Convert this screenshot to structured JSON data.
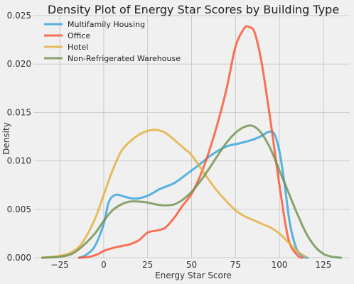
{
  "chart_data": {
    "type": "line",
    "title": "Density Plot of Energy Star Scores by Building Type",
    "xlabel": "Energy Star Score",
    "ylabel": "Density",
    "xlim": [
      -40,
      140
    ],
    "ylim": [
      0,
      0.025
    ],
    "xticks": [
      -25,
      0,
      25,
      50,
      75,
      100,
      125
    ],
    "yticks": [
      "0.000",
      "0.005",
      "0.010",
      "0.015",
      "0.020",
      "0.025"
    ],
    "grid": true,
    "legend_position": "top-left",
    "series": [
      {
        "name": "Multifamily Housing",
        "color": "#30a2da",
        "x": [
          -14,
          -10,
          -5,
          0,
          3,
          7,
          12,
          18,
          25,
          32,
          40,
          47,
          55,
          62,
          70,
          77,
          85,
          90,
          94,
          97,
          100,
          103,
          106,
          110,
          114,
          116
        ],
        "y": [
          0,
          0.0003,
          0.0012,
          0.0035,
          0.0058,
          0.0065,
          0.0063,
          0.0061,
          0.0064,
          0.0071,
          0.0077,
          0.0086,
          0.0097,
          0.0107,
          0.0115,
          0.0118,
          0.0122,
          0.0126,
          0.013,
          0.0128,
          0.011,
          0.0075,
          0.0035,
          0.0008,
          0.0001,
          0
        ]
      },
      {
        "name": "Office",
        "color": "#fc4f30",
        "x": [
          -14,
          -8,
          -3,
          0,
          5,
          10,
          15,
          20,
          25,
          30,
          35,
          40,
          45,
          50,
          55,
          60,
          65,
          70,
          75,
          80,
          83,
          86,
          90,
          95,
          100,
          105,
          110,
          113
        ],
        "y": [
          0,
          0.0001,
          0.0004,
          0.0007,
          0.001,
          0.0012,
          0.0014,
          0.0018,
          0.0026,
          0.0028,
          0.0031,
          0.0041,
          0.0054,
          0.0066,
          0.0085,
          0.011,
          0.014,
          0.0175,
          0.0218,
          0.0237,
          0.0238,
          0.0232,
          0.02,
          0.014,
          0.0075,
          0.002,
          0.0003,
          0
        ]
      },
      {
        "name": "Hotel",
        "color": "#e5ae38",
        "x": [
          -35,
          -25,
          -18,
          -12,
          -5,
          0,
          5,
          10,
          15,
          20,
          25,
          30,
          35,
          40,
          45,
          50,
          55,
          60,
          65,
          70,
          75,
          80,
          85,
          90,
          95,
          100,
          105,
          110,
          115
        ],
        "y": [
          0,
          0.0002,
          0.0006,
          0.0016,
          0.004,
          0.0065,
          0.009,
          0.011,
          0.012,
          0.0127,
          0.0131,
          0.0132,
          0.0129,
          0.0122,
          0.0114,
          0.0106,
          0.0093,
          0.008,
          0.0068,
          0.0058,
          0.0049,
          0.0043,
          0.0039,
          0.0035,
          0.0031,
          0.0025,
          0.0016,
          0.0007,
          0.0001
        ]
      },
      {
        "name": "Non-Refrigerated Warehouse",
        "color": "#6d904f",
        "x": [
          -35,
          -25,
          -18,
          -12,
          -5,
          0,
          5,
          10,
          15,
          20,
          25,
          30,
          35,
          40,
          45,
          50,
          55,
          60,
          65,
          70,
          75,
          80,
          85,
          90,
          95,
          100,
          105,
          110,
          115,
          120,
          125,
          130,
          135
        ],
        "y": [
          0,
          0.0001,
          0.0004,
          0.0012,
          0.0025,
          0.0038,
          0.0049,
          0.0055,
          0.0058,
          0.0058,
          0.0057,
          0.0055,
          0.0054,
          0.0055,
          0.006,
          0.0068,
          0.0079,
          0.0092,
          0.0106,
          0.0119,
          0.0129,
          0.0135,
          0.0136,
          0.0128,
          0.0112,
          0.009,
          0.0068,
          0.0046,
          0.0026,
          0.0012,
          0.0004,
          0.0001,
          0
        ]
      }
    ]
  }
}
